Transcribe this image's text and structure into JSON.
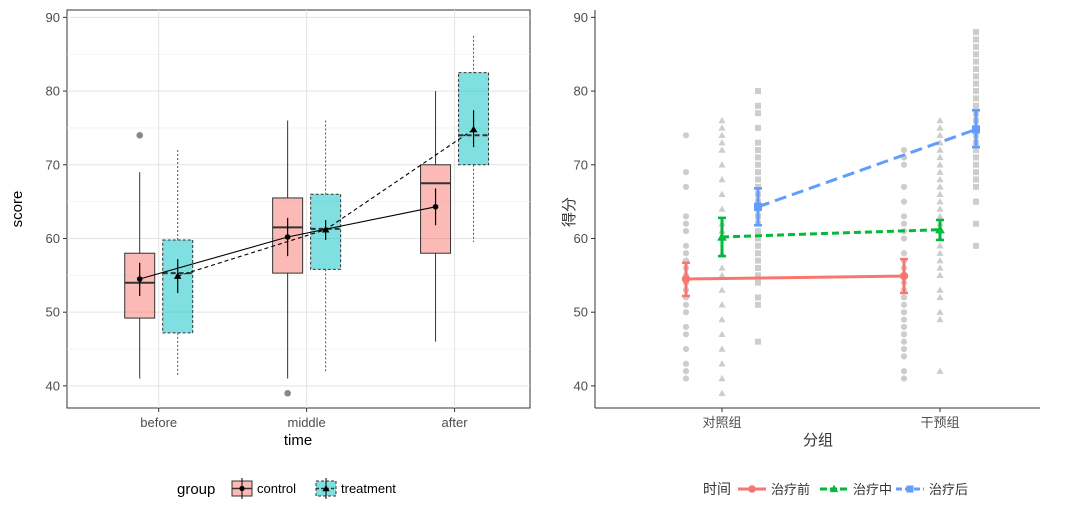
{
  "chart_data": [
    {
      "type": "boxplot",
      "xlabel": "time",
      "ylabel": "score",
      "categories": [
        "before",
        "middle",
        "after"
      ],
      "ylim": [
        37,
        91
      ],
      "yticks": [
        40,
        50,
        60,
        70,
        80,
        90
      ],
      "grid": true,
      "legend": {
        "title": "group",
        "placement": "bottom"
      },
      "series": [
        {
          "name": "control",
          "color": "#F8766D",
          "line_style": "solid",
          "marker": "circle",
          "boxes": [
            {
              "q1": 49.2,
              "median": 54.0,
              "q3": 58.0,
              "whisker_low": 41.0,
              "whisker_high": 69.0,
              "outliers": [
                74
              ],
              "mean": 54.5,
              "ci_low": 52.2,
              "ci_high": 56.7
            },
            {
              "q1": 55.3,
              "median": 61.5,
              "q3": 65.5,
              "whisker_low": 41.0,
              "whisker_high": 76.0,
              "outliers": [
                39
              ],
              "mean": 60.2,
              "ci_low": 57.6,
              "ci_high": 62.8
            },
            {
              "q1": 58.0,
              "median": 67.5,
              "q3": 70.0,
              "whisker_low": 46.0,
              "whisker_high": 80.0,
              "outliers": [],
              "mean": 64.3,
              "ci_low": 61.8,
              "ci_high": 66.8
            }
          ]
        },
        {
          "name": "treatment",
          "color": "#00BFC4",
          "line_style": "dashed",
          "marker": "triangle",
          "boxes": [
            {
              "q1": 47.2,
              "median": 55.3,
              "q3": 59.8,
              "whisker_low": 41.5,
              "whisker_high": 72.0,
              "outliers": [],
              "mean": 54.9,
              "ci_low": 52.6,
              "ci_high": 57.2
            },
            {
              "q1": 55.8,
              "median": 61.3,
              "q3": 66.0,
              "whisker_low": 42.0,
              "whisker_high": 76.0,
              "outliers": [],
              "mean": 61.2,
              "ci_low": 59.8,
              "ci_high": 62.5
            },
            {
              "q1": 70.0,
              "median": 74.0,
              "q3": 82.5,
              "whisker_low": 59.5,
              "whisker_high": 87.5,
              "outliers": [],
              "mean": 74.8,
              "ci_low": 72.4,
              "ci_high": 77.4
            }
          ]
        }
      ]
    },
    {
      "type": "line",
      "xlabel": "分组",
      "ylabel": "得分",
      "categories": [
        "对照组",
        "干预组"
      ],
      "ylim": [
        37,
        91
      ],
      "yticks": [
        40,
        50,
        60,
        70,
        80,
        90
      ],
      "grid": false,
      "legend": {
        "title": "时间",
        "placement": "bottom"
      },
      "series": [
        {
          "name": "治疗前",
          "color": "#F8766D",
          "line_style": "solid",
          "values": [
            54.5,
            54.9
          ],
          "ci_low": [
            52.2,
            52.6
          ],
          "ci_high": [
            56.7,
            57.2
          ]
        },
        {
          "name": "治疗中",
          "color": "#00BA38",
          "line_style": "dashed",
          "values": [
            60.2,
            61.2
          ],
          "ci_low": [
            57.6,
            59.8
          ],
          "ci_high": [
            62.8,
            62.5
          ]
        },
        {
          "name": "治疗后",
          "color": "#619CFF",
          "line_style": "dashed",
          "values": [
            64.3,
            74.8
          ],
          "ci_low": [
            61.8,
            72.4
          ],
          "ci_high": [
            66.8,
            77.4
          ]
        }
      ],
      "raw_points": {
        "series": [
          "治疗前",
          "治疗中",
          "治疗后"
        ],
        "groups": [
          [
            [
              41,
              42,
              43,
              45,
              47,
              48,
              50,
              51,
              52,
              53,
              54,
              55,
              56,
              57,
              58,
              59,
              61,
              62,
              63,
              67,
              69,
              74
            ],
            [
              39,
              41,
              43,
              45,
              47,
              49,
              51,
              53,
              55,
              56,
              58,
              60,
              61,
              62,
              64,
              66,
              68,
              70,
              72,
              73,
              74,
              75,
              76
            ],
            [
              46,
              51,
              52,
              54,
              55,
              56,
              57,
              58,
              59,
              60,
              61,
              62,
              63,
              64,
              65,
              66,
              67,
              68,
              69,
              70,
              71,
              72,
              73,
              75,
              77,
              78,
              80
            ]
          ],
          [
            [
              41,
              42,
              44,
              45,
              46,
              47,
              48,
              49,
              50,
              51,
              52,
              53,
              54,
              55,
              56,
              57,
              58,
              60,
              61,
              62,
              63,
              65,
              67,
              70,
              71,
              72
            ],
            [
              42,
              49,
              50,
              52,
              53,
              55,
              56,
              57,
              58,
              59,
              60,
              61,
              62,
              63,
              64,
              65,
              66,
              67,
              68,
              69,
              70,
              71,
              72,
              73,
              74,
              75,
              76
            ],
            [
              59,
              62,
              65,
              67,
              68,
              69,
              70,
              71,
              72,
              73,
              74,
              75,
              76,
              77,
              78,
              79,
              80,
              81,
              82,
              83,
              84,
              85,
              86,
              87,
              88
            ]
          ]
        ]
      }
    }
  ]
}
